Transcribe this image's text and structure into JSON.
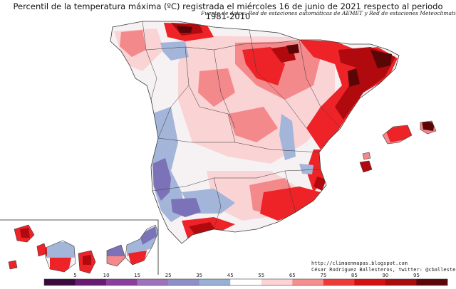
{
  "title": "Percentil de la temperatura máxima (ºC) registrada el miércoles 16 de junio de 2021 respecto al periodo 1981-2010",
  "subtitle": "Fuente de datos: Red de estaciones automáticas de AEMET y Red de estaciones Meteoclimatic",
  "credits": {
    "url": "http://climaenmapas.blogspot.com",
    "author": "César Rodríguez Ballesteros, twitter: @cballesteros"
  },
  "legend": {
    "ticks": [
      "5",
      "10",
      "15",
      "25",
      "35",
      "45",
      "55",
      "65",
      "75",
      "85",
      "90",
      "95"
    ],
    "colors": [
      "#3a0a3e",
      "#6a1b73",
      "#8a3f9e",
      "#9e72bd",
      "#8f8fc8",
      "#99b0d6",
      "#ffffff",
      "#fcd4d4",
      "#f88f8f",
      "#f03a3a",
      "#d60f10",
      "#a80c0c",
      "#5c0707"
    ]
  },
  "palette": {
    "cool_dark": "#7c72b8",
    "cool": "#a3b5d9",
    "neutral": "#f6f2f3",
    "warm_light": "#fad3d5",
    "warm": "#f4898c",
    "hot": "#ee2328",
    "very_hot": "#b10a0e",
    "extreme": "#5a0606",
    "border": "#3a3a3a"
  }
}
